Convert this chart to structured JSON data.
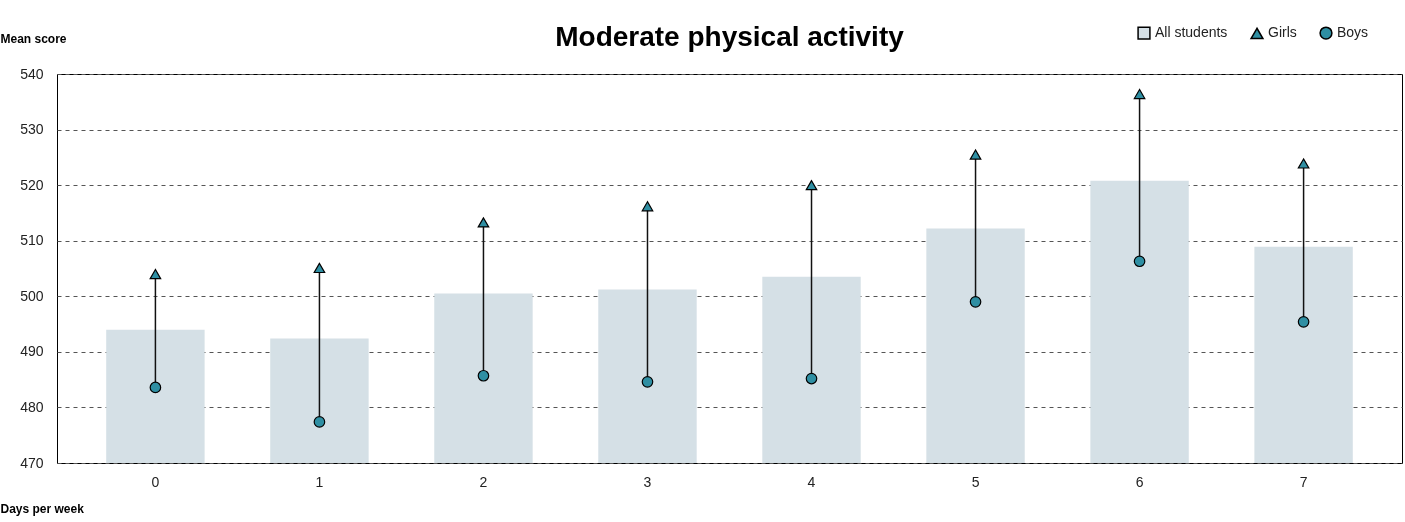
{
  "chart_data": {
    "type": "bar",
    "title": "Moderate physical activity",
    "xlabel": "Days per week",
    "ylabel": "Mean score",
    "categories": [
      "0",
      "1",
      "2",
      "3",
      "4",
      "5",
      "6",
      "7"
    ],
    "series": [
      {
        "name": "All students",
        "type": "bar",
        "color": "#d5e0e6",
        "values": [
          494.0,
          492.4,
          500.5,
          501.2,
          503.5,
          512.2,
          520.8,
          508.9
        ]
      },
      {
        "name": "Girls",
        "type": "scatter",
        "marker": "triangle",
        "color": "#2f8fa3",
        "values": [
          504.0,
          505.1,
          513.3,
          516.2,
          520.0,
          525.5,
          536.4,
          523.9
        ]
      },
      {
        "name": "Boys",
        "type": "scatter",
        "marker": "circle",
        "color": "#2f8fa3",
        "values": [
          483.6,
          477.4,
          485.7,
          484.6,
          485.2,
          499.0,
          506.3,
          495.4
        ]
      }
    ],
    "ylim": [
      470,
      540
    ],
    "yticks": [
      470,
      480,
      490,
      500,
      510,
      520,
      530,
      540
    ],
    "grid": "y",
    "legend": "top right"
  }
}
